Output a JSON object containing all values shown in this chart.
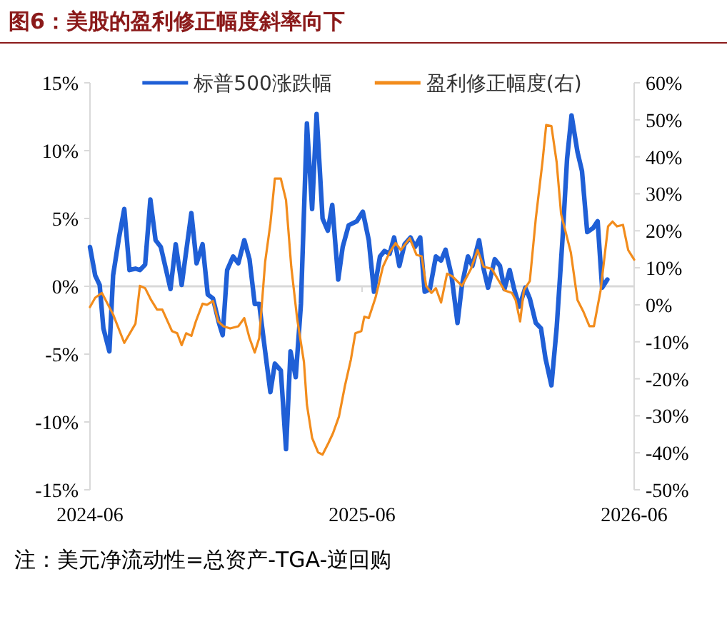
{
  "chart_data": {
    "type": "line",
    "title": "图6：美股的盈利修正幅度斜率向下",
    "legend": "top",
    "line_style": "solid",
    "xlim": [
      "2024-06",
      "2026-06"
    ],
    "xticks": [
      "2024-06",
      "2025-06",
      "2026-06"
    ],
    "ylim": [
      -15,
      15
    ],
    "yticks": [
      {
        "value": -15,
        "label": "-15%"
      },
      {
        "value": -10,
        "label": "-10%"
      },
      {
        "value": -5,
        "label": "-5%"
      },
      {
        "value": 0,
        "label": "0%"
      },
      {
        "value": 5,
        "label": "5%"
      },
      {
        "value": 10,
        "label": "10%"
      },
      {
        "value": 15,
        "label": "15%"
      }
    ],
    "y2lim": [
      -50,
      60
    ],
    "y2ticks": [
      {
        "value": -50,
        "label": "-50%"
      },
      {
        "value": -40,
        "label": "-40%"
      },
      {
        "value": -30,
        "label": "-30%"
      },
      {
        "value": -20,
        "label": "-20%"
      },
      {
        "value": -10,
        "label": "-10%"
      },
      {
        "value": 0,
        "label": "0%"
      },
      {
        "value": 10,
        "label": "10%"
      },
      {
        "value": 20,
        "label": "20%"
      },
      {
        "value": 30,
        "label": "30%"
      },
      {
        "value": 40,
        "label": "40%"
      },
      {
        "value": 50,
        "label": "50%"
      },
      {
        "value": 60,
        "label": "60%"
      }
    ],
    "annotations": [
      "注：美元净流动性=总资产-TGA-逆回购"
    ],
    "series": [
      {
        "name": "标普500涨跌幅",
        "color": "#1f5fd6",
        "x": [
          "2024-06-01",
          "2024-06-08",
          "2024-06-14",
          "2024-06-19",
          "2024-06-27",
          "2024-07-02",
          "2024-07-10",
          "2024-07-17",
          "2024-07-24",
          "2024-08-01",
          "2024-08-07",
          "2024-08-14",
          "2024-08-21",
          "2024-08-28",
          "2024-09-04",
          "2024-09-17",
          "2024-09-24",
          "2024-10-02",
          "2024-10-15",
          "2024-10-22",
          "2024-10-30",
          "2024-11-06",
          "2024-11-13",
          "2024-11-21",
          "2024-11-26",
          "2024-12-02",
          "2024-12-10",
          "2024-12-17",
          "2024-12-25",
          "2025-01-01",
          "2025-01-08",
          "2025-01-14",
          "2025-01-22",
          "2025-01-29",
          "2025-02-04",
          "2025-02-12",
          "2025-02-19",
          "2025-02-25",
          "2025-03-04",
          "2025-03-11",
          "2025-03-19",
          "2025-03-26",
          "2025-04-01",
          "2025-04-09",
          "2025-04-16",
          "2025-04-22",
          "2025-04-30",
          "2025-05-06",
          "2025-05-14",
          "2025-05-25",
          "2025-06-02",
          "2025-06-10",
          "2025-06-17",
          "2025-06-25",
          "2025-07-01",
          "2025-07-08",
          "2025-07-14",
          "2025-07-21",
          "2025-07-28",
          "2025-08-05",
          "2025-08-11",
          "2025-08-18",
          "2025-08-24",
          "2025-08-31",
          "2025-09-08",
          "2025-09-15",
          "2025-09-21",
          "2025-09-29",
          "2025-10-07",
          "2025-10-13",
          "2025-10-21",
          "2025-10-27",
          "2025-11-05",
          "2025-11-11",
          "2025-11-17",
          "2025-11-26",
          "2025-12-03",
          "2025-12-09",
          "2025-12-16",
          "2025-12-22",
          "2025-12-29",
          "2026-01-06",
          "2026-01-12",
          "2026-01-20",
          "2026-01-27",
          "2026-02-02",
          "2026-02-10",
          "2026-02-17",
          "2026-02-25",
          "2026-03-03",
          "2026-03-09",
          "2026-03-17",
          "2026-03-23",
          "2026-03-30",
          "2026-04-07",
          "2026-04-13",
          "2026-04-19",
          "2026-04-26"
        ],
        "values": [
          2.9,
          0.8,
          0.1,
          -3.1,
          -4.8,
          0.8,
          3.6,
          5.7,
          1.2,
          1.3,
          1.2,
          1.6,
          6.4,
          3.4,
          2.9,
          -0.2,
          3.1,
          0.1,
          5.4,
          1.7,
          3.1,
          -0.6,
          -0.9,
          -2.7,
          -3.6,
          1.2,
          2.2,
          1.7,
          3.4,
          2.0,
          -1.3,
          -1.3,
          -4.8,
          -7.8,
          -5.7,
          -6.2,
          -12.0,
          -4.8,
          -6.7,
          -1.3,
          12.0,
          5.7,
          12.7,
          5.0,
          4.1,
          6.0,
          0.5,
          2.9,
          4.5,
          4.8,
          5.5,
          3.4,
          -0.4,
          2.2,
          2.6,
          2.4,
          3.6,
          1.5,
          3.1,
          3.6,
          2.9,
          3.6,
          -0.4,
          -0.2,
          2.2,
          1.9,
          2.7,
          0.8,
          -2.7,
          0.1,
          2.2,
          1.5,
          3.4,
          1.3,
          -0.1,
          2.0,
          1.5,
          -0.2,
          1.2,
          -0.2,
          -1.5,
          -0.1,
          -0.9,
          -2.7,
          -3.1,
          -5.3,
          -7.3,
          -3.1,
          3.6,
          9.4,
          12.6,
          9.9,
          8.5,
          4.0,
          4.3,
          4.8,
          -0.1,
          0.5
        ]
      },
      {
        "name": "盈利修正幅度(右)",
        "color": "#f28c1c",
        "axis": "y2",
        "x": [
          "2024-06-01",
          "2024-06-08",
          "2024-06-17",
          "2024-07-02",
          "2024-07-17",
          "2024-08-01",
          "2024-08-07",
          "2024-08-14",
          "2024-08-22",
          "2024-08-30",
          "2024-09-06",
          "2024-09-19",
          "2024-09-26",
          "2024-10-02",
          "2024-10-08",
          "2024-10-15",
          "2024-10-21",
          "2024-10-30",
          "2024-11-05",
          "2024-11-13",
          "2024-11-20",
          "2024-11-27",
          "2024-12-06",
          "2024-12-17",
          "2024-12-25",
          "2025-01-01",
          "2025-01-08",
          "2025-01-14",
          "2025-01-22",
          "2025-01-29",
          "2025-02-04",
          "2025-02-12",
          "2025-02-19",
          "2025-02-26",
          "2025-03-06",
          "2025-03-15",
          "2025-03-19",
          "2025-03-26",
          "2025-04-03",
          "2025-04-09",
          "2025-04-17",
          "2025-04-23",
          "2025-05-01",
          "2025-05-09",
          "2025-05-17",
          "2025-05-23",
          "2025-05-31",
          "2025-06-04",
          "2025-06-10",
          "2025-06-19",
          "2025-06-29",
          "2025-07-08",
          "2025-07-16",
          "2025-07-23",
          "2025-08-04",
          "2025-08-13",
          "2025-08-20",
          "2025-08-26",
          "2025-09-02",
          "2025-09-08",
          "2025-09-15",
          "2025-09-23",
          "2025-09-30",
          "2025-10-13",
          "2025-10-25",
          "2025-11-03",
          "2025-11-11",
          "2025-11-22",
          "2025-12-09",
          "2025-12-19",
          "2025-12-24",
          "2025-12-30",
          "2026-01-04",
          "2026-01-12",
          "2026-01-20",
          "2026-01-29",
          "2026-02-03",
          "2026-02-10",
          "2026-02-17",
          "2026-02-23",
          "2026-03-08",
          "2026-03-17",
          "2026-03-25",
          "2026-04-02",
          "2026-04-08",
          "2026-04-17",
          "2026-04-27",
          "2026-05-03",
          "2026-05-09",
          "2026-05-17",
          "2026-05-24",
          "2026-06-01"
        ],
        "values": [
          -0.6,
          1.9,
          3.2,
          -2.6,
          -10.3,
          -5.1,
          5.1,
          4.5,
          1.3,
          -1.3,
          -1.3,
          -7.1,
          -7.7,
          -10.9,
          -7.7,
          -8.4,
          -4.5,
          0.3,
          0,
          1.0,
          -4.5,
          -5.8,
          -6.4,
          -5.8,
          -3.6,
          -9.0,
          -12.9,
          -9.0,
          11.6,
          21.9,
          34.1,
          34.1,
          28.3,
          10.3,
          -3.9,
          -15.4,
          -27.0,
          -36.0,
          -39.9,
          -40.5,
          -37.3,
          -34.7,
          -30.2,
          -21.9,
          -14.8,
          -7.7,
          -7.1,
          -3.2,
          -3.6,
          1.9,
          10.3,
          14.2,
          16.7,
          14.8,
          18.0,
          13.5,
          13.1,
          5.1,
          3.2,
          4.5,
          0.6,
          8.4,
          7.7,
          5.1,
          9.7,
          14.8,
          10.3,
          9.7,
          3.9,
          3.2,
          1.3,
          -4.5,
          3.9,
          6.4,
          23.2,
          38.6,
          48.6,
          48.3,
          38.6,
          24.5,
          14.2,
          1.3,
          -1.9,
          -5.8,
          -5.8,
          3.9,
          21.2,
          22.5,
          21.2,
          21.6,
          14.8,
          12.2
        ]
      }
    ]
  }
}
